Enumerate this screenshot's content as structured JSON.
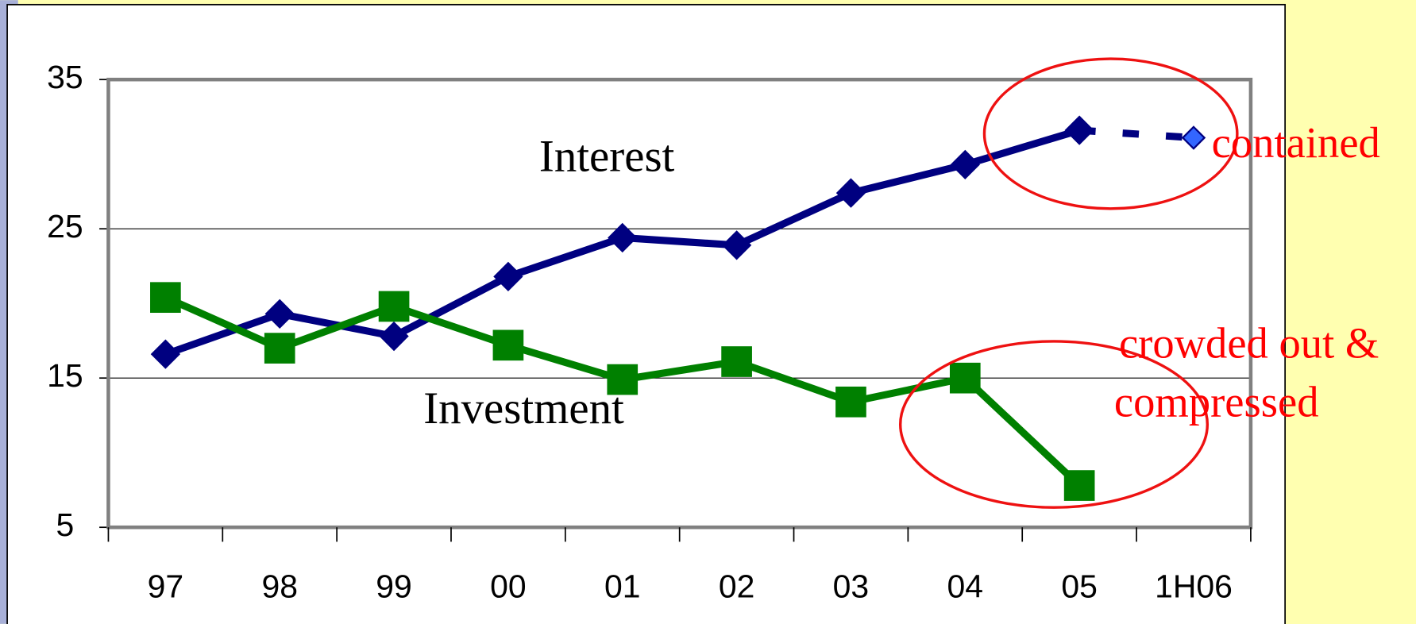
{
  "chart_data": {
    "type": "line",
    "categories": [
      "97",
      "98",
      "99",
      "00",
      "01",
      "02",
      "03",
      "04",
      "05",
      "1H06"
    ],
    "series": [
      {
        "name": "Interest",
        "color": "#000080",
        "marker": "diamond",
        "dashed_last": true,
        "values": [
          16.6,
          19.3,
          17.8,
          21.8,
          24.4,
          23.9,
          27.4,
          29.3,
          31.6,
          31.1
        ]
      },
      {
        "name": "Investment",
        "color": "#008000",
        "marker": "square",
        "values": [
          20.4,
          17.0,
          19.8,
          17.2,
          14.9,
          16.1,
          13.4,
          15.0,
          7.8,
          null
        ]
      }
    ],
    "annotations": [
      "contained",
      "crowded out &",
      "compressed"
    ],
    "ylim": [
      5,
      35
    ],
    "yticks": [
      5,
      15,
      25,
      35
    ],
    "grid": true
  }
}
